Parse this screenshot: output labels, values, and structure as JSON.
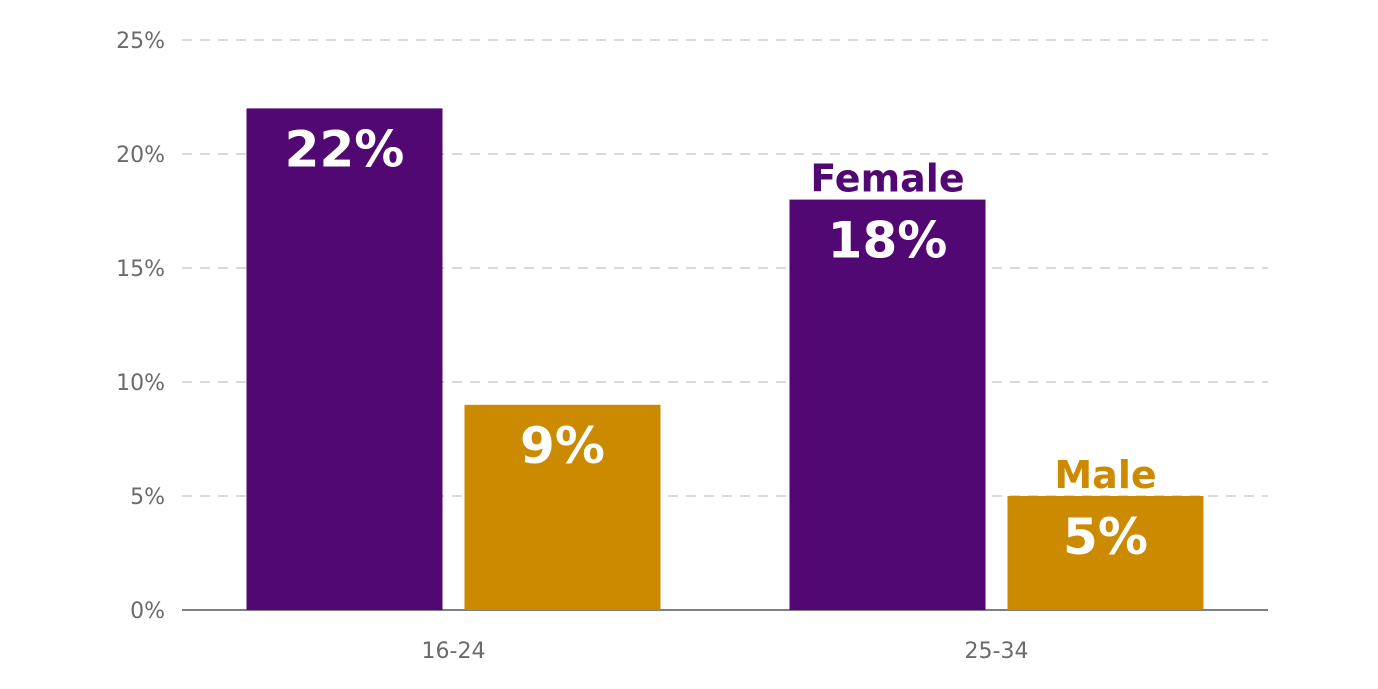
{
  "chart_data": {
    "type": "bar",
    "categories": [
      "16-24",
      "25-34"
    ],
    "series": [
      {
        "name": "Female",
        "values": [
          22,
          18
        ],
        "color": "#510872"
      },
      {
        "name": "Male",
        "values": [
          9,
          5
        ],
        "color": "#CC8A00"
      }
    ],
    "data_labels": [
      [
        "22%",
        "18%"
      ],
      [
        "9%",
        "5%"
      ]
    ],
    "yticks": [
      "0%",
      "5%",
      "10%",
      "15%",
      "20%",
      "25%"
    ],
    "ytick_values": [
      0,
      5,
      10,
      15,
      20,
      25
    ],
    "ylim": [
      0,
      25
    ],
    "grid": true,
    "grid_style": "dashed",
    "legend": "inline labels above last category bars",
    "title": "",
    "xlabel": "",
    "ylabel": ""
  }
}
